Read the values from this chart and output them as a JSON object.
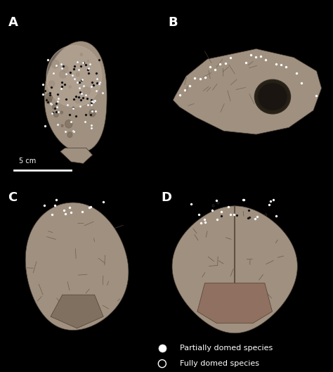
{
  "background_color": "#000000",
  "label_color": "#ffffff",
  "label_fontsize": 13,
  "scale_bar_text": "5 cm",
  "scale_bar_color": "#ffffff",
  "legend_items": [
    {
      "label": "Partially domed species",
      "facecolor": "#ffffff",
      "edgecolor": "#ffffff",
      "filled": true
    },
    {
      "label": "Fully domed species",
      "facecolor": "#000000",
      "edgecolor": "#ffffff",
      "filled": false
    }
  ],
  "legend_fontsize": 8,
  "dot_white": "#ffffff",
  "dot_black": "#000000",
  "skull_color": "#a09080",
  "skull_light": "#b8a898",
  "skull_dark": "#706050",
  "dot_size_legend": 8
}
